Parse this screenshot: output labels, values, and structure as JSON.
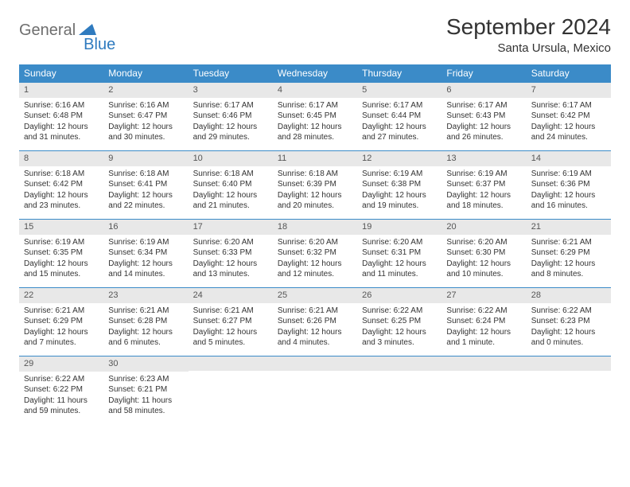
{
  "logo": {
    "part1": "General",
    "part2": "Blue"
  },
  "title": "September 2024",
  "location": "Santa Ursula, Mexico",
  "colors": {
    "header_bg": "#3b8bc8",
    "header_text": "#ffffff",
    "daynum_bg": "#e8e8e8",
    "border": "#3b8bc8",
    "text": "#333333",
    "logo_gray": "#6e6e6e",
    "logo_blue": "#2f7bbf"
  },
  "day_headers": [
    "Sunday",
    "Monday",
    "Tuesday",
    "Wednesday",
    "Thursday",
    "Friday",
    "Saturday"
  ],
  "weeks": [
    [
      {
        "n": "1",
        "sr": "Sunrise: 6:16 AM",
        "ss": "Sunset: 6:48 PM",
        "d1": "Daylight: 12 hours",
        "d2": "and 31 minutes."
      },
      {
        "n": "2",
        "sr": "Sunrise: 6:16 AM",
        "ss": "Sunset: 6:47 PM",
        "d1": "Daylight: 12 hours",
        "d2": "and 30 minutes."
      },
      {
        "n": "3",
        "sr": "Sunrise: 6:17 AM",
        "ss": "Sunset: 6:46 PM",
        "d1": "Daylight: 12 hours",
        "d2": "and 29 minutes."
      },
      {
        "n": "4",
        "sr": "Sunrise: 6:17 AM",
        "ss": "Sunset: 6:45 PM",
        "d1": "Daylight: 12 hours",
        "d2": "and 28 minutes."
      },
      {
        "n": "5",
        "sr": "Sunrise: 6:17 AM",
        "ss": "Sunset: 6:44 PM",
        "d1": "Daylight: 12 hours",
        "d2": "and 27 minutes."
      },
      {
        "n": "6",
        "sr": "Sunrise: 6:17 AM",
        "ss": "Sunset: 6:43 PM",
        "d1": "Daylight: 12 hours",
        "d2": "and 26 minutes."
      },
      {
        "n": "7",
        "sr": "Sunrise: 6:17 AM",
        "ss": "Sunset: 6:42 PM",
        "d1": "Daylight: 12 hours",
        "d2": "and 24 minutes."
      }
    ],
    [
      {
        "n": "8",
        "sr": "Sunrise: 6:18 AM",
        "ss": "Sunset: 6:42 PM",
        "d1": "Daylight: 12 hours",
        "d2": "and 23 minutes."
      },
      {
        "n": "9",
        "sr": "Sunrise: 6:18 AM",
        "ss": "Sunset: 6:41 PM",
        "d1": "Daylight: 12 hours",
        "d2": "and 22 minutes."
      },
      {
        "n": "10",
        "sr": "Sunrise: 6:18 AM",
        "ss": "Sunset: 6:40 PM",
        "d1": "Daylight: 12 hours",
        "d2": "and 21 minutes."
      },
      {
        "n": "11",
        "sr": "Sunrise: 6:18 AM",
        "ss": "Sunset: 6:39 PM",
        "d1": "Daylight: 12 hours",
        "d2": "and 20 minutes."
      },
      {
        "n": "12",
        "sr": "Sunrise: 6:19 AM",
        "ss": "Sunset: 6:38 PM",
        "d1": "Daylight: 12 hours",
        "d2": "and 19 minutes."
      },
      {
        "n": "13",
        "sr": "Sunrise: 6:19 AM",
        "ss": "Sunset: 6:37 PM",
        "d1": "Daylight: 12 hours",
        "d2": "and 18 minutes."
      },
      {
        "n": "14",
        "sr": "Sunrise: 6:19 AM",
        "ss": "Sunset: 6:36 PM",
        "d1": "Daylight: 12 hours",
        "d2": "and 16 minutes."
      }
    ],
    [
      {
        "n": "15",
        "sr": "Sunrise: 6:19 AM",
        "ss": "Sunset: 6:35 PM",
        "d1": "Daylight: 12 hours",
        "d2": "and 15 minutes."
      },
      {
        "n": "16",
        "sr": "Sunrise: 6:19 AM",
        "ss": "Sunset: 6:34 PM",
        "d1": "Daylight: 12 hours",
        "d2": "and 14 minutes."
      },
      {
        "n": "17",
        "sr": "Sunrise: 6:20 AM",
        "ss": "Sunset: 6:33 PM",
        "d1": "Daylight: 12 hours",
        "d2": "and 13 minutes."
      },
      {
        "n": "18",
        "sr": "Sunrise: 6:20 AM",
        "ss": "Sunset: 6:32 PM",
        "d1": "Daylight: 12 hours",
        "d2": "and 12 minutes."
      },
      {
        "n": "19",
        "sr": "Sunrise: 6:20 AM",
        "ss": "Sunset: 6:31 PM",
        "d1": "Daylight: 12 hours",
        "d2": "and 11 minutes."
      },
      {
        "n": "20",
        "sr": "Sunrise: 6:20 AM",
        "ss": "Sunset: 6:30 PM",
        "d1": "Daylight: 12 hours",
        "d2": "and 10 minutes."
      },
      {
        "n": "21",
        "sr": "Sunrise: 6:21 AM",
        "ss": "Sunset: 6:29 PM",
        "d1": "Daylight: 12 hours",
        "d2": "and 8 minutes."
      }
    ],
    [
      {
        "n": "22",
        "sr": "Sunrise: 6:21 AM",
        "ss": "Sunset: 6:29 PM",
        "d1": "Daylight: 12 hours",
        "d2": "and 7 minutes."
      },
      {
        "n": "23",
        "sr": "Sunrise: 6:21 AM",
        "ss": "Sunset: 6:28 PM",
        "d1": "Daylight: 12 hours",
        "d2": "and 6 minutes."
      },
      {
        "n": "24",
        "sr": "Sunrise: 6:21 AM",
        "ss": "Sunset: 6:27 PM",
        "d1": "Daylight: 12 hours",
        "d2": "and 5 minutes."
      },
      {
        "n": "25",
        "sr": "Sunrise: 6:21 AM",
        "ss": "Sunset: 6:26 PM",
        "d1": "Daylight: 12 hours",
        "d2": "and 4 minutes."
      },
      {
        "n": "26",
        "sr": "Sunrise: 6:22 AM",
        "ss": "Sunset: 6:25 PM",
        "d1": "Daylight: 12 hours",
        "d2": "and 3 minutes."
      },
      {
        "n": "27",
        "sr": "Sunrise: 6:22 AM",
        "ss": "Sunset: 6:24 PM",
        "d1": "Daylight: 12 hours",
        "d2": "and 1 minute."
      },
      {
        "n": "28",
        "sr": "Sunrise: 6:22 AM",
        "ss": "Sunset: 6:23 PM",
        "d1": "Daylight: 12 hours",
        "d2": "and 0 minutes."
      }
    ],
    [
      {
        "n": "29",
        "sr": "Sunrise: 6:22 AM",
        "ss": "Sunset: 6:22 PM",
        "d1": "Daylight: 11 hours",
        "d2": "and 59 minutes."
      },
      {
        "n": "30",
        "sr": "Sunrise: 6:23 AM",
        "ss": "Sunset: 6:21 PM",
        "d1": "Daylight: 11 hours",
        "d2": "and 58 minutes."
      },
      null,
      null,
      null,
      null,
      null
    ]
  ]
}
